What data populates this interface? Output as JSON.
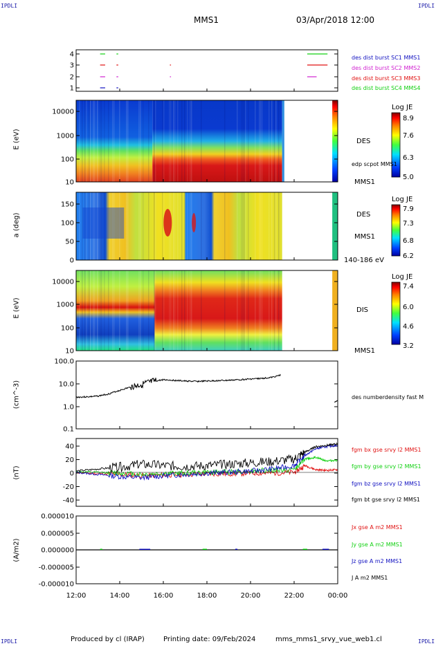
{
  "header": {
    "corner_tl": "IPDLI",
    "corner_tr": "IPDLI",
    "corner_bl": "IPDLI",
    "corner_br": "IPDLI",
    "mission": "MMS1",
    "date": "03/Apr/2018 12:00"
  },
  "footer": {
    "produced": "Produced by cl (IRAP)",
    "printing": "Printing date: 09/Feb/2024",
    "file": "mms_mms1_srvy_vue_web1.cl"
  },
  "colors": {
    "blue": "#1010c0",
    "magenta": "#d020d0",
    "red": "#e01010",
    "green": "#10d010",
    "black": "#000000"
  },
  "chart_data": [
    {
      "type": "scatter",
      "panel": "burst-availability",
      "yticks": [
        "1",
        "2",
        "3",
        "4"
      ],
      "legend": [
        {
          "name": "des dist burst SC1 MMS1",
          "color": "#1010c0"
        },
        {
          "name": "des dist burst SC2 MMS2",
          "color": "#d020d0"
        },
        {
          "name": "des dist burst SC3 MMS3",
          "color": "#e01010"
        },
        {
          "name": "des dist burst SC4 MMS4",
          "color": "#10d010"
        }
      ],
      "segments": [
        {
          "level": 4,
          "t0": 13.1,
          "t1": 13.3
        },
        {
          "level": 4,
          "t0": 13.85,
          "t1": 13.9
        },
        {
          "level": 4,
          "t0": 22.6,
          "t1": 23.5
        },
        {
          "level": 3,
          "t0": 13.1,
          "t1": 13.3
        },
        {
          "level": 3,
          "t0": 13.85,
          "t1": 13.9
        },
        {
          "level": 3,
          "t0": 16.3,
          "t1": 16.32
        },
        {
          "level": 3,
          "t0": 22.6,
          "t1": 23.5
        },
        {
          "level": 2,
          "t0": 13.1,
          "t1": 13.3
        },
        {
          "level": 2,
          "t0": 13.85,
          "t1": 13.9
        },
        {
          "level": 2,
          "t0": 16.3,
          "t1": 16.32
        },
        {
          "level": 2,
          "t0": 22.6,
          "t1": 23.0
        },
        {
          "level": 1,
          "t0": 13.1,
          "t1": 13.3
        },
        {
          "level": 1,
          "t0": 13.85,
          "t1": 13.9
        }
      ]
    },
    {
      "type": "heatmap",
      "panel": "des-energy",
      "ylabel": "E (eV)",
      "yticks": [
        "10000",
        "1000",
        "100",
        "10"
      ],
      "label": "DES",
      "overlay_label": "edp scpot MMS1",
      "sc_label": "MMS1",
      "colorbar": {
        "title": "Log JE",
        "ticks": [
          "8.9",
          "7.6",
          "6.3",
          "5.0"
        ]
      }
    },
    {
      "type": "heatmap",
      "panel": "des-pitch-angle",
      "ylabel": "a (deg)",
      "yticks": [
        "150",
        "100",
        "50",
        "0"
      ],
      "label": "DES",
      "sc_label": "MMS1",
      "energy_band": "140-186 eV",
      "colorbar": {
        "title": "Log JE",
        "ticks": [
          "7.9",
          "7.3",
          "6.8",
          "6.2"
        ]
      }
    },
    {
      "type": "heatmap",
      "panel": "dis-energy",
      "ylabel": "E (eV)",
      "yticks": [
        "10000",
        "1000",
        "100",
        "10"
      ],
      "label": "DIS",
      "sc_label": "MMS1",
      "colorbar": {
        "title": "Log JE",
        "ticks": [
          "7.4",
          "6.0",
          "4.6",
          "3.2"
        ]
      }
    },
    {
      "type": "line",
      "panel": "density",
      "ylabel": "(cm^-3)",
      "yticks": [
        "100.0",
        "10.0",
        "1.0",
        "0.1"
      ],
      "ylim": [
        0.1,
        100
      ],
      "legend": [
        {
          "name": "des numberdensity fast M",
          "color": "#000000"
        }
      ],
      "x": [
        12.0,
        12.5,
        13.0,
        13.5,
        14.0,
        14.5,
        15.0,
        15.5,
        16.0,
        16.5,
        17.0,
        17.5,
        18.0,
        18.5,
        19.0,
        19.5,
        20.0,
        20.5,
        21.0,
        21.4,
        23.9,
        24.0
      ],
      "y": [
        2.5,
        2.6,
        2.8,
        3.5,
        5.0,
        7.0,
        9.0,
        12.0,
        15.0,
        14.0,
        13.0,
        12.5,
        13.0,
        13.5,
        14.0,
        15.0,
        16.0,
        17.0,
        19.0,
        24.0,
        1.5,
        1.8
      ]
    },
    {
      "type": "line",
      "panel": "magnetic-field",
      "ylabel": "(nT)",
      "yticks": [
        "40",
        "20",
        "0",
        "-20",
        "-40"
      ],
      "ylim": [
        -50,
        50
      ],
      "x": [
        12.0,
        13.0,
        14.0,
        15.0,
        16.0,
        17.0,
        18.0,
        19.0,
        20.0,
        21.0,
        22.0,
        22.5,
        23.0,
        23.5,
        24.0
      ],
      "series": [
        {
          "name": "fgm bx gse srvy l2 MMS1",
          "color": "#e01010",
          "values": [
            0,
            -2,
            -3,
            -5,
            -4,
            -3,
            -2,
            -2,
            -1,
            -1,
            0,
            10,
            4,
            3,
            4
          ]
        },
        {
          "name": "fgm by gse srvy l2 MMS1",
          "color": "#10d010",
          "values": [
            1,
            0,
            -1,
            -3,
            -2,
            -1,
            0,
            1,
            2,
            3,
            4,
            20,
            22,
            17,
            18
          ]
        },
        {
          "name": "fgm bz gse srvy l2 MMS1",
          "color": "#1010c0",
          "values": [
            0,
            -3,
            -6,
            -8,
            -5,
            -3,
            -1,
            0,
            2,
            5,
            10,
            25,
            35,
            38,
            40
          ]
        },
        {
          "name": "fgm bt gse srvy l2 MMS1",
          "color": "#000000",
          "values": [
            2,
            5,
            8,
            12,
            10,
            9,
            10,
            12,
            14,
            16,
            20,
            30,
            38,
            40,
            42
          ]
        }
      ]
    },
    {
      "type": "line",
      "panel": "current-density",
      "ylabel": "(A/m2)",
      "yticks": [
        "0.000010",
        "0.000005",
        "0.000000",
        "-0.000005",
        "-0.000010"
      ],
      "ylim": [
        -1e-05,
        1e-05
      ],
      "legend": [
        {
          "name": "Jx gse A m2 MMS1",
          "color": "#e01010"
        },
        {
          "name": "Jy gse A m2 MMS1",
          "color": "#10d010"
        },
        {
          "name": "Jz gse A m2 MMS1",
          "color": "#1010c0"
        },
        {
          "name": "J A m2 MMS1",
          "color": "#000000"
        }
      ],
      "x": [
        12,
        24
      ],
      "y": [
        0,
        0
      ]
    }
  ],
  "xaxis": {
    "ticks": [
      "12:00",
      "14:00",
      "16:00",
      "18:00",
      "20:00",
      "22:00",
      "00:00"
    ]
  }
}
